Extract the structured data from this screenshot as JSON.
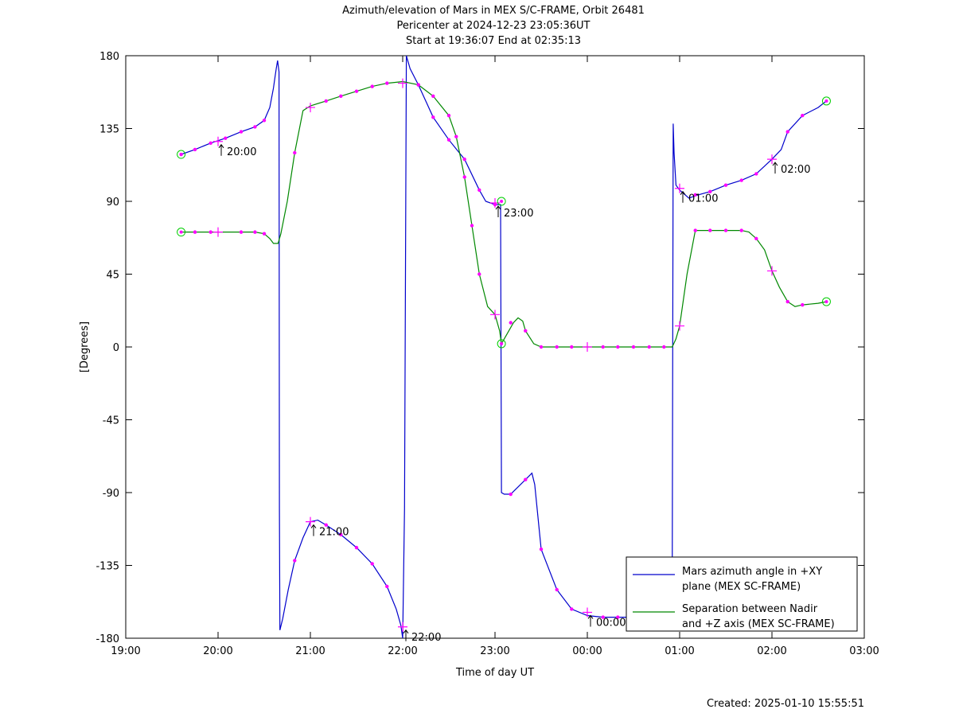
{
  "chart_data": {
    "type": "line",
    "title": [
      "Azimuth/elevation of Mars in MEX S/C-FRAME,  Orbit 26481",
      "Pericenter at 2024-12-23 23:05:36UT",
      "Start at 19:36:07 End at 02:35:13"
    ],
    "xlabel": "Time of day UT",
    "ylabel": "[Degrees]",
    "footer": "Created: 2025-01-10 15:55:51",
    "x_unit": "hours after 19:00 UT",
    "xlim": [
      0,
      8
    ],
    "ylim": [
      -180,
      180
    ],
    "x_ticks": [
      {
        "value": 0,
        "label": "19:00"
      },
      {
        "value": 1,
        "label": "20:00"
      },
      {
        "value": 2,
        "label": "21:00"
      },
      {
        "value": 3,
        "label": "22:00"
      },
      {
        "value": 4,
        "label": "23:00"
      },
      {
        "value": 5,
        "label": "00:00"
      },
      {
        "value": 6,
        "label": "01:00"
      },
      {
        "value": 7,
        "label": "02:00"
      },
      {
        "value": 8,
        "label": "03:00"
      }
    ],
    "y_ticks": [
      180,
      135,
      90,
      45,
      0,
      -45,
      -90,
      -135,
      -180
    ],
    "legend": {
      "placement": "bottom-right"
    },
    "series": [
      {
        "name": [
          "Mars azimuth angle in +XY",
          "plane (MEX SC-FRAME)"
        ],
        "color": "#0000cc",
        "points": [
          [
            0.6,
            119
          ],
          [
            0.75,
            122
          ],
          [
            0.92,
            126
          ],
          [
            1.08,
            129
          ],
          [
            1.25,
            133
          ],
          [
            1.4,
            136
          ],
          [
            1.5,
            140
          ],
          [
            1.56,
            148
          ],
          [
            1.6,
            160
          ],
          [
            1.62,
            168
          ],
          [
            1.63,
            172
          ],
          [
            1.645,
            177
          ],
          [
            1.66,
            170
          ],
          [
            1.665,
            -100
          ],
          [
            1.67,
            -175
          ],
          [
            1.7,
            -168
          ],
          [
            1.76,
            -150
          ],
          [
            1.83,
            -132
          ],
          [
            1.92,
            -118
          ],
          [
            2.0,
            -108
          ],
          [
            2.08,
            -107
          ],
          [
            2.17,
            -110
          ],
          [
            2.33,
            -116
          ],
          [
            2.5,
            -124
          ],
          [
            2.67,
            -134
          ],
          [
            2.83,
            -148
          ],
          [
            2.93,
            -162
          ],
          [
            2.98,
            -172
          ],
          [
            3.0,
            -180
          ],
          [
            3.02,
            -100
          ],
          [
            3.04,
            180
          ],
          [
            3.08,
            172
          ],
          [
            3.17,
            162
          ],
          [
            3.33,
            142
          ],
          [
            3.5,
            128
          ],
          [
            3.67,
            116
          ],
          [
            3.83,
            97
          ],
          [
            3.9,
            90
          ],
          [
            4.0,
            88
          ],
          [
            4.06,
            88
          ],
          [
            4.07,
            -90
          ],
          [
            4.1,
            -91
          ],
          [
            4.17,
            -91
          ],
          [
            4.33,
            -82
          ],
          [
            4.4,
            -78
          ],
          [
            4.43,
            -85
          ],
          [
            4.5,
            -125
          ],
          [
            4.67,
            -150
          ],
          [
            4.83,
            -162
          ],
          [
            5.0,
            -166
          ],
          [
            5.17,
            -167
          ],
          [
            5.33,
            -167
          ],
          [
            5.5,
            -167
          ],
          [
            5.67,
            -167
          ],
          [
            5.83,
            -167
          ],
          [
            5.92,
            -140
          ],
          [
            5.925,
            0
          ],
          [
            5.93,
            138
          ],
          [
            5.94,
            120
          ],
          [
            5.96,
            100
          ],
          [
            6.0,
            97
          ],
          [
            6.1,
            92
          ],
          [
            6.2,
            94
          ],
          [
            6.33,
            96
          ],
          [
            6.5,
            100
          ],
          [
            6.67,
            103
          ],
          [
            6.83,
            107
          ],
          [
            7.0,
            116
          ],
          [
            7.1,
            122
          ],
          [
            7.17,
            133
          ],
          [
            7.33,
            143
          ],
          [
            7.5,
            148
          ],
          [
            7.59,
            152
          ]
        ]
      },
      {
        "name": [
          "Separation between Nadir",
          "and +Z axis (MEX SC-FRAME)"
        ],
        "color": "#008800",
        "points": [
          [
            0.6,
            71
          ],
          [
            0.75,
            71
          ],
          [
            0.92,
            71
          ],
          [
            1.08,
            71
          ],
          [
            1.25,
            71
          ],
          [
            1.4,
            71
          ],
          [
            1.5,
            70
          ],
          [
            1.56,
            67
          ],
          [
            1.6,
            64
          ],
          [
            1.65,
            64
          ],
          [
            1.68,
            70
          ],
          [
            1.75,
            90
          ],
          [
            1.83,
            120
          ],
          [
            1.92,
            146
          ],
          [
            2.0,
            149
          ],
          [
            2.17,
            152
          ],
          [
            2.33,
            155
          ],
          [
            2.5,
            158
          ],
          [
            2.67,
            161
          ],
          [
            2.83,
            163
          ],
          [
            3.0,
            164
          ],
          [
            3.17,
            162
          ],
          [
            3.33,
            155
          ],
          [
            3.5,
            143
          ],
          [
            3.58,
            130
          ],
          [
            3.67,
            105
          ],
          [
            3.75,
            75
          ],
          [
            3.83,
            45
          ],
          [
            3.92,
            25
          ],
          [
            4.0,
            20
          ],
          [
            4.05,
            10
          ],
          [
            4.07,
            2
          ],
          [
            4.12,
            7
          ],
          [
            4.2,
            15
          ],
          [
            4.25,
            18
          ],
          [
            4.3,
            16
          ],
          [
            4.33,
            10
          ],
          [
            4.42,
            2
          ],
          [
            4.5,
            0
          ],
          [
            4.67,
            0
          ],
          [
            4.83,
            0
          ],
          [
            5.0,
            0
          ],
          [
            5.17,
            0
          ],
          [
            5.33,
            0
          ],
          [
            5.5,
            0
          ],
          [
            5.67,
            0
          ],
          [
            5.83,
            0
          ],
          [
            5.92,
            0
          ],
          [
            5.96,
            5
          ],
          [
            6.0,
            13
          ],
          [
            6.08,
            45
          ],
          [
            6.17,
            72
          ],
          [
            6.33,
            72
          ],
          [
            6.5,
            72
          ],
          [
            6.67,
            72
          ],
          [
            6.75,
            71
          ],
          [
            6.83,
            67
          ],
          [
            6.92,
            60
          ],
          [
            7.0,
            47
          ],
          [
            7.08,
            37
          ],
          [
            7.17,
            28
          ],
          [
            7.25,
            25
          ],
          [
            7.33,
            26
          ],
          [
            7.5,
            27
          ],
          [
            7.59,
            28
          ]
        ]
      }
    ],
    "markers_dots": [
      [
        0.6,
        119
      ],
      [
        0.75,
        122
      ],
      [
        0.92,
        126
      ],
      [
        1.08,
        129
      ],
      [
        1.25,
        133
      ],
      [
        1.4,
        136
      ],
      [
        1.5,
        140
      ],
      [
        1.83,
        -132
      ],
      [
        2.17,
        -110
      ],
      [
        2.33,
        -116
      ],
      [
        2.5,
        -124
      ],
      [
        2.67,
        -134
      ],
      [
        2.83,
        -148
      ],
      [
        3.17,
        162
      ],
      [
        3.33,
        142
      ],
      [
        3.5,
        128
      ],
      [
        3.67,
        116
      ],
      [
        3.83,
        97
      ],
      [
        4.0,
        88
      ],
      [
        4.17,
        -91
      ],
      [
        4.33,
        -82
      ],
      [
        4.5,
        -125
      ],
      [
        4.67,
        -150
      ],
      [
        4.83,
        -162
      ],
      [
        5.17,
        -167
      ],
      [
        5.33,
        -167
      ],
      [
        6.17,
        94
      ],
      [
        6.33,
        96
      ],
      [
        6.5,
        100
      ],
      [
        6.67,
        103
      ],
      [
        6.83,
        107
      ],
      [
        7.17,
        133
      ],
      [
        7.33,
        143
      ],
      [
        0.75,
        71
      ],
      [
        0.92,
        71
      ],
      [
        1.25,
        71
      ],
      [
        1.4,
        71
      ],
      [
        1.5,
        70
      ],
      [
        1.83,
        120
      ],
      [
        2.17,
        152
      ],
      [
        2.33,
        155
      ],
      [
        2.5,
        158
      ],
      [
        2.67,
        161
      ],
      [
        2.83,
        163
      ],
      [
        3.17,
        162
      ],
      [
        3.33,
        155
      ],
      [
        3.5,
        143
      ],
      [
        3.58,
        130
      ],
      [
        3.67,
        105
      ],
      [
        3.75,
        75
      ],
      [
        3.83,
        45
      ],
      [
        4.17,
        15
      ],
      [
        4.33,
        10
      ],
      [
        4.5,
        0
      ],
      [
        4.67,
        0
      ],
      [
        4.83,
        0
      ],
      [
        5.17,
        0
      ],
      [
        5.33,
        0
      ],
      [
        5.5,
        0
      ],
      [
        5.67,
        0
      ],
      [
        5.83,
        0
      ],
      [
        6.17,
        72
      ],
      [
        6.33,
        72
      ],
      [
        6.5,
        72
      ],
      [
        6.67,
        72
      ],
      [
        6.83,
        67
      ],
      [
        7.17,
        28
      ],
      [
        7.33,
        26
      ]
    ],
    "markers_plus": [
      [
        1.0,
        127
      ],
      [
        2.0,
        -108
      ],
      [
        3.0,
        -173
      ],
      [
        4.0,
        89
      ],
      [
        5.0,
        -164
      ],
      [
        6.0,
        98
      ],
      [
        7.0,
        116
      ],
      [
        1.0,
        71
      ],
      [
        2.0,
        148
      ],
      [
        3.0,
        163
      ],
      [
        4.0,
        20
      ],
      [
        5.0,
        0
      ],
      [
        6.0,
        13
      ],
      [
        7.0,
        47
      ]
    ],
    "markers_circle": [
      [
        0.6,
        119
      ],
      [
        0.6,
        71
      ],
      [
        4.07,
        90
      ],
      [
        4.07,
        2
      ],
      [
        7.59,
        152
      ],
      [
        7.59,
        28
      ]
    ],
    "hour_labels": [
      {
        "x": 1.0,
        "y": 127,
        "label": "20:00"
      },
      {
        "x": 2.0,
        "y": -108,
        "label": "21:00"
      },
      {
        "x": 3.0,
        "y": -173,
        "label": "22:00"
      },
      {
        "x": 4.0,
        "y": 89,
        "label": "23:00"
      },
      {
        "x": 5.0,
        "y": -164,
        "label": "00:00"
      },
      {
        "x": 6.0,
        "y": 98,
        "label": "01:00"
      },
      {
        "x": 7.0,
        "y": 116,
        "label": "02:00"
      }
    ]
  }
}
